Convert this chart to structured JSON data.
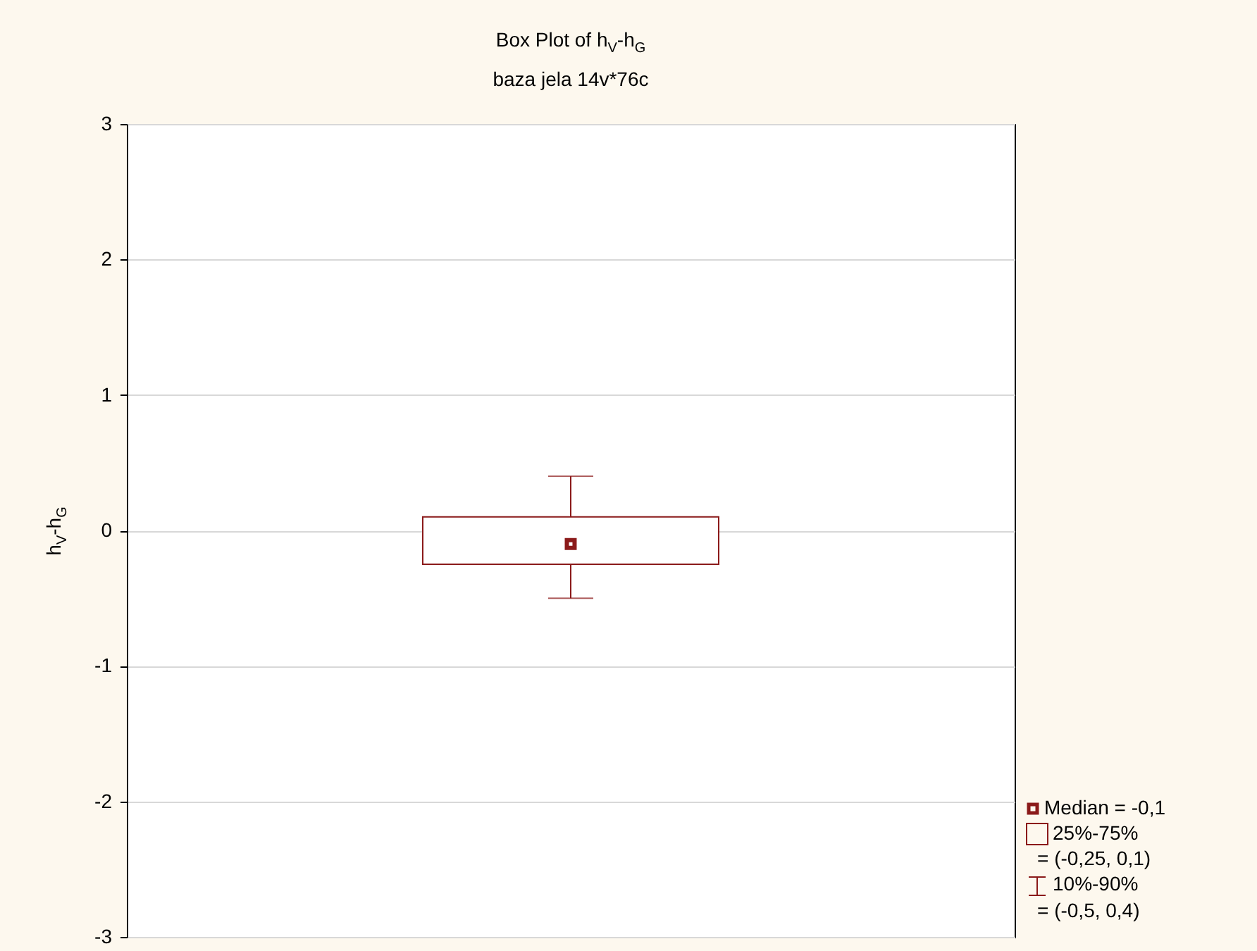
{
  "chart_data": {
    "type": "box",
    "title": "Box Plot of h$_{V}$-h$_{G}$",
    "subtitle": "baza jela 14v*76c",
    "ylabel": "h$_{V}$-h$_{G}$",
    "categories": [
      null
    ],
    "series": [
      {
        "color": "#8b1a1a",
        "boxes": [
          {
            "low": -0.5,
            "q1": -0.25,
            "median": -0.1,
            "q3": 0.1,
            "high": 0.4
          }
        ]
      }
    ],
    "ylim": [
      -3,
      3
    ],
    "yticks": [
      -3,
      -2,
      -1,
      0,
      1,
      2,
      3
    ],
    "grid": "y",
    "tick_labels": "y",
    "annotations": [
      "Median = -0,1",
      "25%-75%",
      "= (-0,25, 0,1)",
      "10%-90%",
      "= (-0,5, 0,4)"
    ]
  }
}
